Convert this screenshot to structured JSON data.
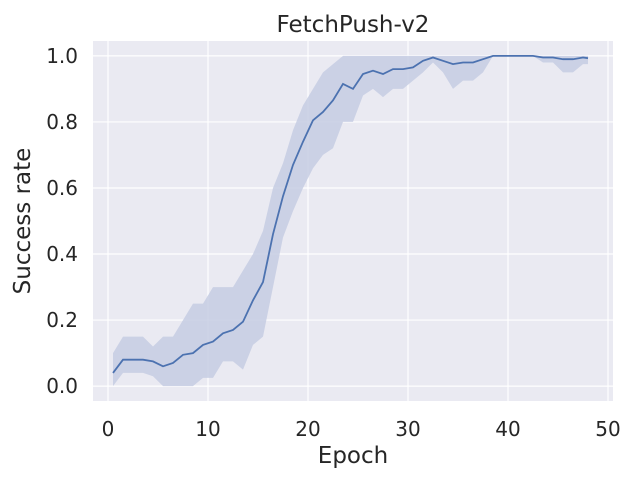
{
  "chart_data": {
    "type": "line",
    "title": "FetchPush-v2",
    "xlabel": "Epoch",
    "ylabel": "Success rate",
    "xlim": [
      -1.5,
      50.5
    ],
    "ylim": [
      -0.045,
      1.045
    ],
    "xticks": [
      0,
      10,
      20,
      30,
      40,
      50
    ],
    "yticks": [
      0.0,
      0.2,
      0.4,
      0.6,
      0.8,
      1.0
    ],
    "xtick_labels": [
      "0",
      "10",
      "20",
      "30",
      "40",
      "50"
    ],
    "ytick_labels": [
      "0.0",
      "0.2",
      "0.4",
      "0.6",
      "0.8",
      "1.0"
    ],
    "grid": true,
    "colors": {
      "background": "#eaeaf2",
      "grid": "#ffffff",
      "line": "#4c72b0",
      "band": "#c5cce3"
    },
    "series": [
      {
        "x": [
          0.5,
          1.5,
          2.5,
          3.5,
          4.5,
          5.5,
          6.5,
          7.5,
          8.5,
          9.5,
          10.5,
          11.5,
          12.5,
          13.5,
          14.5,
          15.5,
          16.5,
          17.5,
          18.5,
          19.5,
          20.5,
          21.5,
          22.5,
          23.5,
          24.5,
          25.5,
          26.5,
          27.5,
          28.5,
          29.5,
          30.5,
          31.5,
          32.5,
          33.5,
          34.5,
          35.5,
          36.5,
          37.5,
          38.5,
          39.5,
          40.5,
          41.5,
          42.5,
          43.5,
          44.5,
          45.5,
          46.5,
          47.5,
          48.0
        ],
        "values": [
          0.04,
          0.08,
          0.08,
          0.08,
          0.075,
          0.06,
          0.07,
          0.095,
          0.1,
          0.125,
          0.135,
          0.16,
          0.17,
          0.195,
          0.26,
          0.315,
          0.46,
          0.575,
          0.67,
          0.74,
          0.805,
          0.83,
          0.865,
          0.915,
          0.9,
          0.945,
          0.955,
          0.945,
          0.96,
          0.96,
          0.965,
          0.985,
          0.995,
          0.985,
          0.975,
          0.98,
          0.98,
          0.99,
          1.0,
          1.0,
          1.0,
          1.0,
          1.0,
          0.995,
          0.995,
          0.99,
          0.99,
          0.995,
          0.993
        ],
        "lower": [
          0.0,
          0.04,
          0.04,
          0.04,
          0.03,
          0.0,
          0.0,
          0.0,
          0.0,
          0.025,
          0.025,
          0.075,
          0.075,
          0.05,
          0.125,
          0.15,
          0.3,
          0.45,
          0.53,
          0.6,
          0.66,
          0.7,
          0.72,
          0.8,
          0.8,
          0.88,
          0.9,
          0.875,
          0.9,
          0.9,
          0.925,
          0.95,
          0.98,
          0.95,
          0.9,
          0.925,
          0.925,
          0.95,
          1.0,
          1.0,
          1.0,
          1.0,
          1.0,
          0.98,
          0.98,
          0.95,
          0.95,
          0.975,
          0.975
        ],
        "upper": [
          0.1,
          0.15,
          0.15,
          0.15,
          0.12,
          0.15,
          0.15,
          0.2,
          0.25,
          0.25,
          0.3,
          0.3,
          0.3,
          0.35,
          0.4,
          0.47,
          0.6,
          0.675,
          0.775,
          0.85,
          0.9,
          0.95,
          0.975,
          1.0,
          1.0,
          1.0,
          1.0,
          1.0,
          1.0,
          1.0,
          1.0,
          1.0,
          1.0,
          1.0,
          1.0,
          1.0,
          1.0,
          1.0,
          1.0,
          1.0,
          1.0,
          1.0,
          1.0,
          1.0,
          1.0,
          1.0,
          1.0,
          1.0,
          1.0
        ]
      }
    ]
  }
}
